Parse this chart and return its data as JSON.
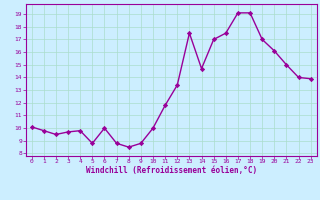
{
  "x": [
    0,
    1,
    2,
    3,
    4,
    5,
    6,
    7,
    8,
    9,
    10,
    11,
    12,
    13,
    14,
    15,
    16,
    17,
    18,
    19,
    20,
    21,
    22,
    23
  ],
  "y": [
    10.1,
    9.8,
    9.5,
    9.7,
    9.8,
    8.8,
    10.0,
    8.8,
    8.5,
    8.8,
    10.0,
    11.8,
    13.4,
    17.5,
    14.7,
    17.0,
    17.5,
    19.1,
    19.1,
    17.0,
    16.1,
    15.0,
    14.0,
    13.9
  ],
  "line_color": "#990099",
  "marker": "D",
  "marker_size": 2.2,
  "line_width": 1.0,
  "background_color": "#cceeff",
  "grid_color": "#aaddcc",
  "xlabel": "Windchill (Refroidissement éolien,°C)",
  "xlabel_color": "#990099",
  "tick_color": "#990099",
  "spine_color": "#990099",
  "ylim": [
    7.8,
    19.8
  ],
  "yticks": [
    8,
    9,
    10,
    11,
    12,
    13,
    14,
    15,
    16,
    17,
    18,
    19
  ],
  "xlim": [
    -0.5,
    23.5
  ],
  "xticks": [
    0,
    1,
    2,
    3,
    4,
    5,
    6,
    7,
    8,
    9,
    10,
    11,
    12,
    13,
    14,
    15,
    16,
    17,
    18,
    19,
    20,
    21,
    22,
    23
  ]
}
